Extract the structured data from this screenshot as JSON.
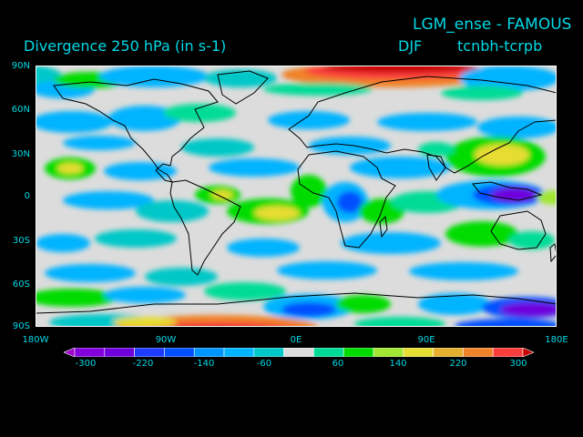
{
  "title": {
    "experiment": "LGM_ense - FAMOUS",
    "field": "Divergence   250 hPa  (in s-1)",
    "season": "DJF",
    "difference": "tcnbh-tcrpb"
  },
  "map": {
    "lat_labels": [
      "90N",
      "60N",
      "30N",
      "0",
      "30S",
      "60S",
      "90S"
    ],
    "lon_labels": [
      "180W",
      "90W",
      "0E",
      "90E",
      "180E"
    ],
    "colors": {
      "background": "#000000",
      "text": "#00d9e6",
      "land_line": "#000000",
      "neutral": "#dcdcdc"
    }
  },
  "colorbar": {
    "tick_labels": [
      "-300",
      "-220",
      "-140",
      "-60",
      "60",
      "140",
      "220",
      "300"
    ],
    "levels": [
      -300,
      -260,
      -220,
      -180,
      -140,
      -100,
      -60,
      -20,
      20,
      60,
      100,
      140,
      180,
      220,
      260,
      300
    ],
    "colors": [
      "#a000c8",
      "#8200dc",
      "#6e00dc",
      "#1e3cff",
      "#0050ff",
      "#0096ff",
      "#00b4ff",
      "#00c8c8",
      "#dcdcdc",
      "#00dc96",
      "#00dc00",
      "#a0e632",
      "#e6dc32",
      "#e6af2d",
      "#f08228",
      "#fa3c3c",
      "#c80000"
    ]
  }
}
